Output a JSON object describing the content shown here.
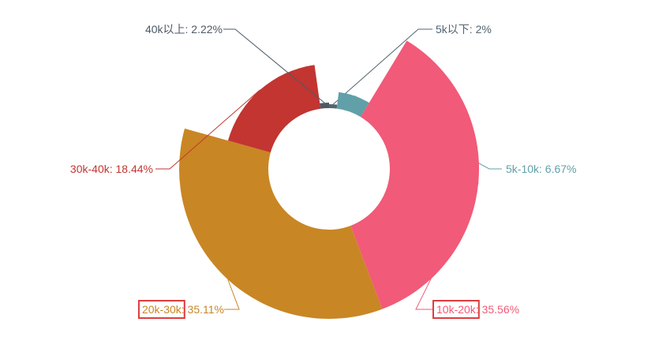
{
  "chart_data": {
    "type": "pie",
    "variant": "rose-donut",
    "title": "",
    "categories": [
      "5k以下",
      "5k-10k",
      "10k-20k",
      "20k-30k",
      "30k-40k",
      "40k以上"
    ],
    "values": [
      2,
      6.67,
      35.56,
      35.11,
      18.44,
      2.22
    ],
    "labels": [
      "5k以下: 2%",
      "5k-10k: 6.67%",
      "10k-20k: 35.56%",
      "20k-30k: 35.11%",
      "30k-40k: 18.44%",
      "40k以上: 2.22%"
    ],
    "colors": [
      "#546570",
      "#61a0a8",
      "#f15a78",
      "#c98624",
      "#c23531",
      "#4d5a66"
    ],
    "highlighted_labels": [
      "10k-20k",
      "20k-30k"
    ],
    "highlight_color": "#e03c3c"
  }
}
